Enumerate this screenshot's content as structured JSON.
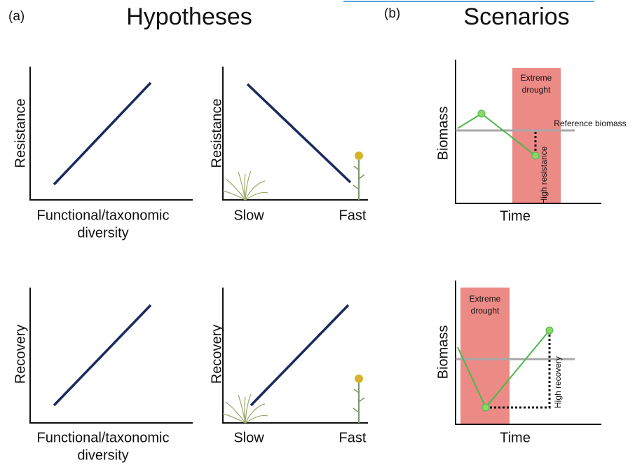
{
  "figure": {
    "part_a": {
      "label": "(a)",
      "title": "Hypotheses"
    },
    "part_b": {
      "label": "(b)",
      "title": "Scenarios"
    },
    "panels": [
      {
        "y_label": "Resistance",
        "x_label": [
          "Functional/taxonomic",
          "diversity"
        ]
      },
      {
        "y_label": "Resistance",
        "x_left": "Slow",
        "x_right": "Fast"
      },
      {
        "y_label": "Recovery",
        "x_label": [
          "Functional/taxonomic",
          "diversity"
        ]
      },
      {
        "y_label": "Recovery",
        "x_left": "Slow",
        "x_right": "Fast"
      }
    ],
    "scenarios": [
      {
        "y_label": "Biomass",
        "x_label": "Time",
        "drought": [
          "Extreme",
          "drought"
        ],
        "reference": "Reference biomass",
        "effect": "High resistance"
      },
      {
        "y_label": "Biomass",
        "x_label": "Time",
        "drought": [
          "Extreme",
          "drought"
        ],
        "effect": "High recovery"
      }
    ]
  }
}
